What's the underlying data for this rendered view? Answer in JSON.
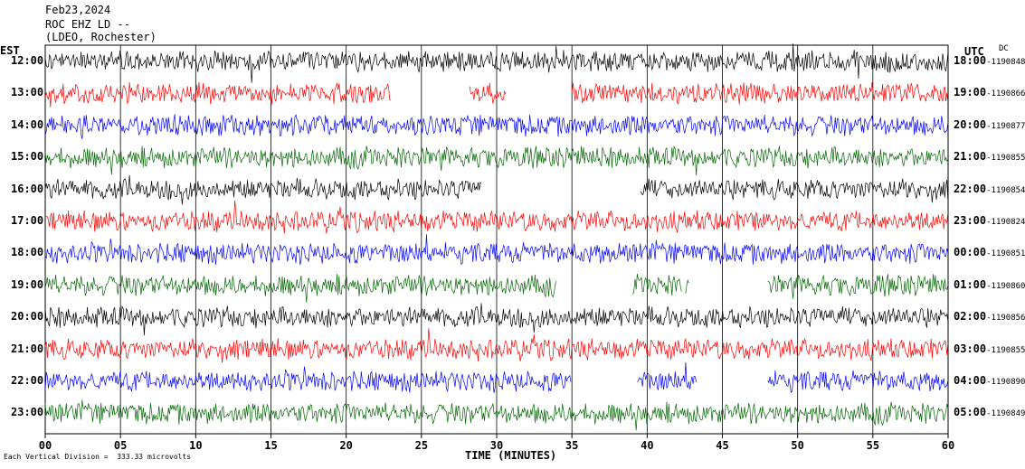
{
  "header": {
    "date": "Feb23,2024",
    "station": "ROC EHZ LD --",
    "network": "(LDEO, Rochester)"
  },
  "left_tz_label": "EST",
  "right_tz_label": "UTC",
  "dc_label": "DC",
  "scale_note": "Each Vertical Division =  333.33 microvolts",
  "colors": {
    "black": "#000000",
    "red": "#ff0000",
    "blue": "#0000ff",
    "green": "#006600",
    "grid": "#000000"
  },
  "chart_data": {
    "type": "line",
    "title": "",
    "xlabel": "TIME (MINUTES)",
    "ylabel": "",
    "xlim": [
      0,
      60
    ],
    "x_ticks": [
      "00",
      "05",
      "10",
      "15",
      "20",
      "25",
      "30",
      "35",
      "40",
      "45",
      "50",
      "55",
      "60"
    ],
    "grid": true,
    "series": [
      {
        "local": "12:00",
        "utc": "18:00",
        "dc": "-1190848",
        "color": "black",
        "gaps": []
      },
      {
        "local": "13:00",
        "utc": "19:00",
        "dc": "-1190866",
        "color": "red",
        "gaps": [
          [
            23.0,
            28.2
          ],
          [
            30.6,
            35.0
          ]
        ]
      },
      {
        "local": "14:00",
        "utc": "20:00",
        "dc": "-1190877",
        "color": "blue",
        "gaps": []
      },
      {
        "local": "15:00",
        "utc": "21:00",
        "dc": "-1190855",
        "color": "green",
        "gaps": []
      },
      {
        "local": "16:00",
        "utc": "22:00",
        "dc": "-1190854",
        "color": "black",
        "gaps": [
          [
            29.0,
            39.5
          ]
        ]
      },
      {
        "local": "17:00",
        "utc": "23:00",
        "dc": "-1190824",
        "color": "red",
        "gaps": []
      },
      {
        "local": "18:00",
        "utc": "00:00",
        "dc": "-1190851",
        "color": "blue",
        "gaps": []
      },
      {
        "local": "19:00",
        "utc": "01:00",
        "dc": "-1190860",
        "color": "green",
        "gaps": [
          [
            34.0,
            39.0
          ],
          [
            42.3,
            42.5
          ],
          [
            42.8,
            48.0
          ]
        ]
      },
      {
        "local": "20:00",
        "utc": "02:00",
        "dc": "-1190856",
        "color": "black",
        "gaps": []
      },
      {
        "local": "21:00",
        "utc": "03:00",
        "dc": "-1190855",
        "color": "red",
        "gaps": []
      },
      {
        "local": "22:00",
        "utc": "04:00",
        "dc": "-1190890",
        "color": "blue",
        "gaps": [
          [
            35.0,
            39.3
          ],
          [
            43.3,
            48.0
          ]
        ]
      },
      {
        "local": "23:00",
        "utc": "05:00",
        "dc": "-1190849",
        "color": "green",
        "gaps": []
      }
    ]
  }
}
